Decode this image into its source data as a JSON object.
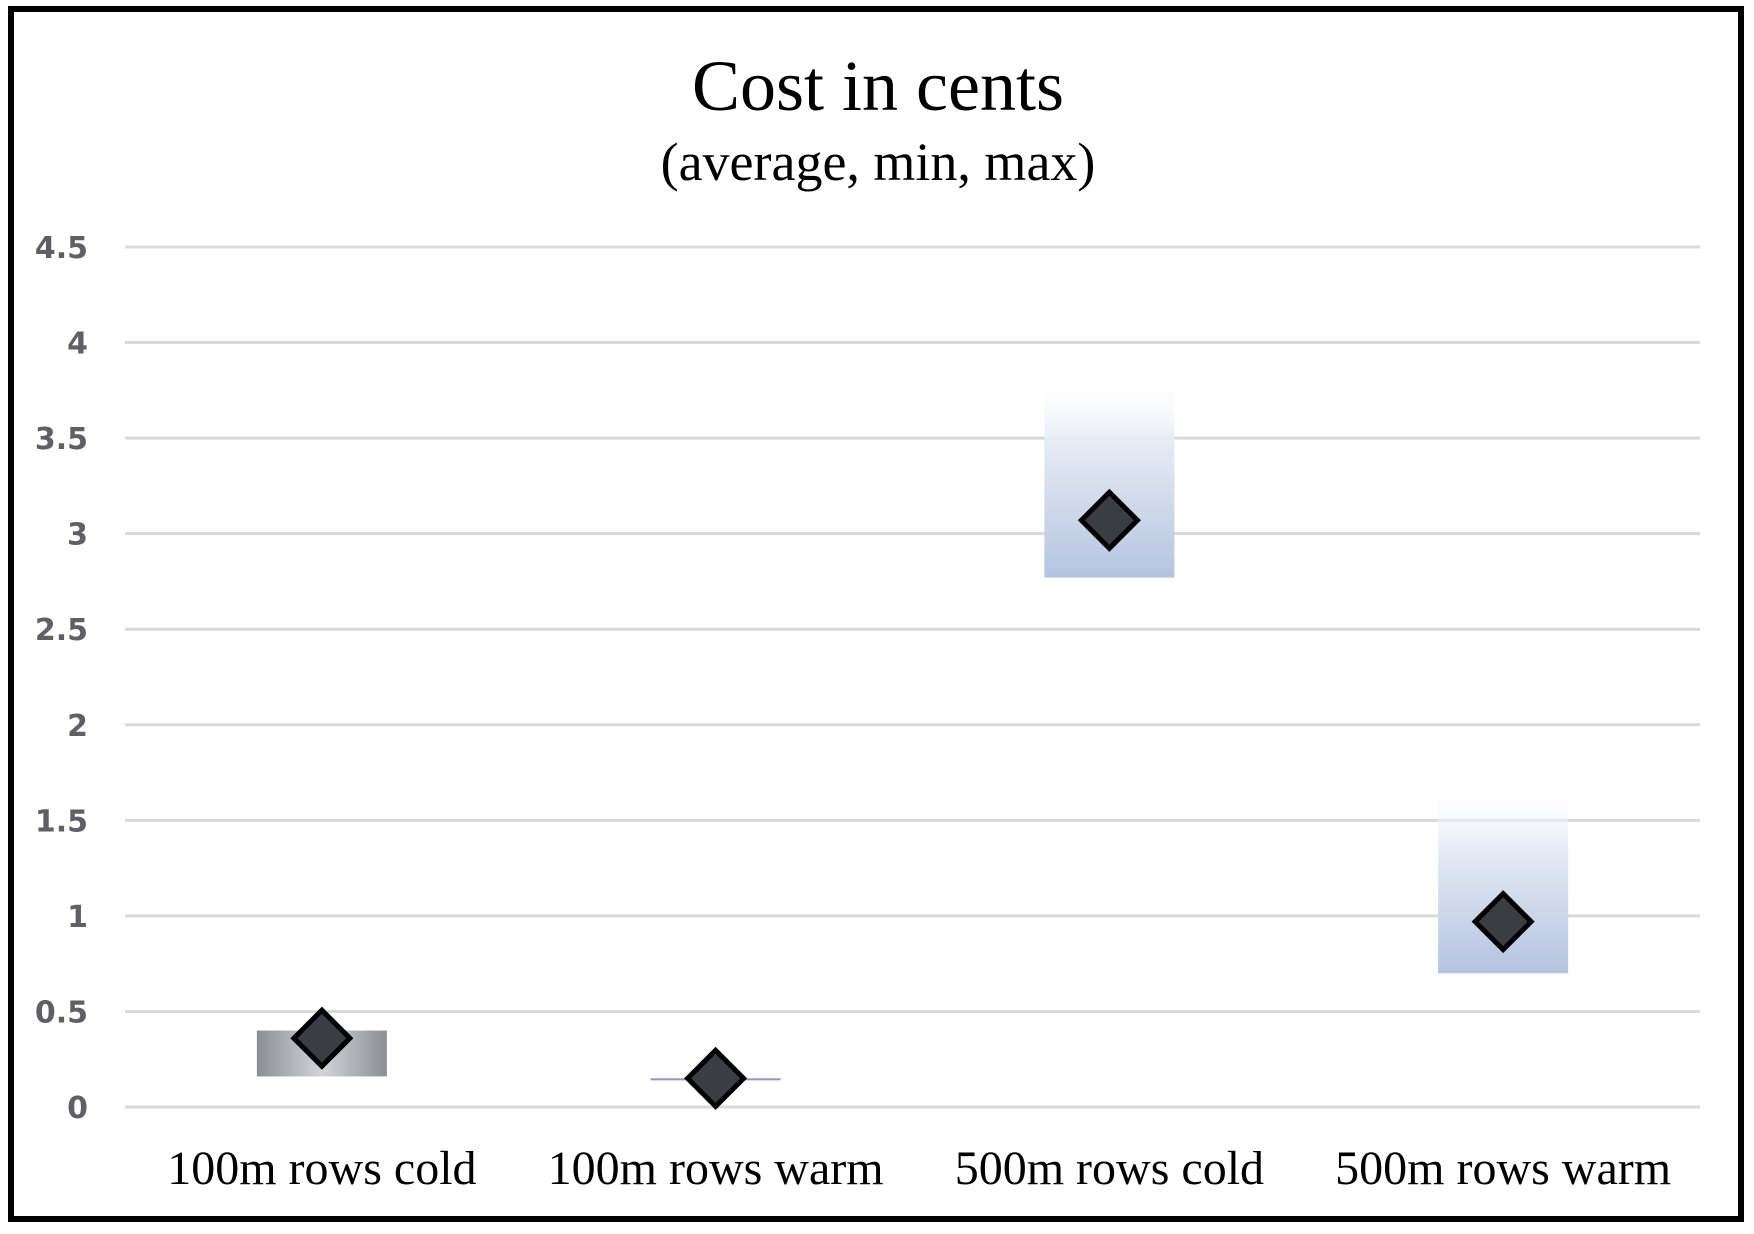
{
  "chart_data": {
    "type": "scatter",
    "title": "Cost in cents",
    "subtitle": "(average, min, max)",
    "xlabel": "",
    "ylabel": "",
    "ylim": [
      0,
      4.5
    ],
    "yticks": [
      "0",
      "0.5",
      "1",
      "1.5",
      "2",
      "2.5",
      "3",
      "3.5",
      "4",
      "4.5"
    ],
    "grid": true,
    "categories": [
      "100m rows cold",
      "100m rows warm",
      "500m rows cold",
      "500m rows warm"
    ],
    "series": [
      {
        "average": 0.36,
        "min": 0.16,
        "max": 0.4
      },
      {
        "average": 0.15,
        "min": 0.14,
        "max": 0.15
      },
      {
        "average": 3.07,
        "min": 2.77,
        "max": 3.85
      },
      {
        "average": 0.97,
        "min": 0.7,
        "max": 1.7
      }
    ],
    "colors": {
      "range": "#b4c4e0",
      "range_top": "#ffffff",
      "marker": "#3c3d44",
      "marker_edge": "#000000",
      "cold_small_range": "#8c8e96"
    }
  }
}
